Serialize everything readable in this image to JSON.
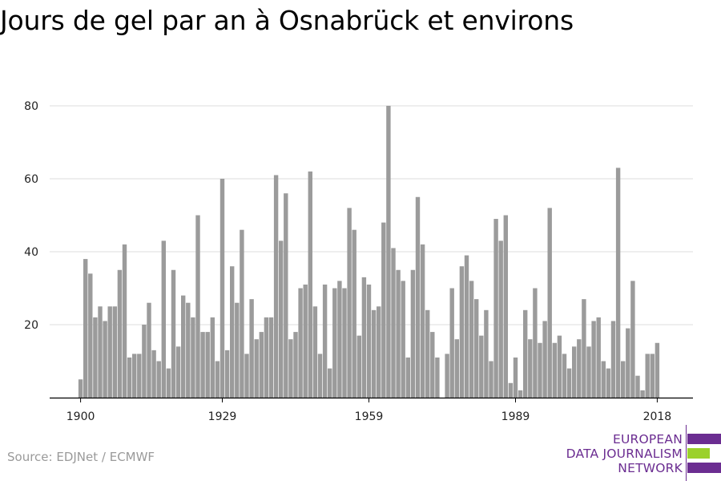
{
  "header": {
    "title": "Jours de gel par an à Osnabrück et environs"
  },
  "footer": {
    "source": "Source: EDJNet / ECMWF"
  },
  "logo": {
    "line1": "EUROPEAN",
    "line2": "DATA JOURNALISM",
    "line3": "NETWORK",
    "colors": {
      "purple": "#6b2d91",
      "green": "#9bd12b"
    }
  },
  "chart_data": {
    "type": "bar",
    "title": "Jours de gel par an à Osnabrück et environs",
    "xlabel": "",
    "ylabel": "",
    "x_start": 1900,
    "x_end": 2018,
    "x_ticks": [
      1900,
      1929,
      1959,
      1989,
      2018
    ],
    "y_ticks": [
      20,
      40,
      60,
      80
    ],
    "ylim": [
      0,
      85
    ],
    "grid": true,
    "bar_color": "#9b9b9b",
    "years": [
      1900,
      1901,
      1902,
      1903,
      1904,
      1905,
      1906,
      1907,
      1908,
      1909,
      1910,
      1911,
      1912,
      1913,
      1914,
      1915,
      1916,
      1917,
      1918,
      1919,
      1920,
      1921,
      1922,
      1923,
      1924,
      1925,
      1926,
      1927,
      1928,
      1929,
      1930,
      1931,
      1932,
      1933,
      1934,
      1935,
      1936,
      1937,
      1938,
      1939,
      1940,
      1941,
      1942,
      1943,
      1944,
      1945,
      1946,
      1947,
      1948,
      1949,
      1950,
      1951,
      1952,
      1953,
      1954,
      1955,
      1956,
      1957,
      1958,
      1959,
      1960,
      1961,
      1962,
      1963,
      1964,
      1965,
      1966,
      1967,
      1968,
      1969,
      1970,
      1971,
      1972,
      1973,
      1974,
      1975,
      1976,
      1977,
      1978,
      1979,
      1980,
      1981,
      1982,
      1983,
      1984,
      1985,
      1986,
      1987,
      1988,
      1989,
      1990,
      1991,
      1992,
      1993,
      1994,
      1995,
      1996,
      1997,
      1998,
      1999,
      2000,
      2001,
      2002,
      2003,
      2004,
      2005,
      2006,
      2007,
      2008,
      2009,
      2010,
      2011,
      2012,
      2013,
      2014,
      2015,
      2016,
      2017,
      2018
    ],
    "values": [
      5,
      38,
      34,
      22,
      25,
      21,
      25,
      25,
      35,
      42,
      11,
      12,
      12,
      20,
      26,
      13,
      10,
      43,
      8,
      35,
      14,
      28,
      26,
      22,
      50,
      18,
      18,
      22,
      10,
      60,
      13,
      36,
      26,
      46,
      12,
      27,
      16,
      18,
      22,
      22,
      61,
      43,
      56,
      16,
      18,
      30,
      31,
      62,
      25,
      12,
      31,
      8,
      30,
      32,
      30,
      52,
      46,
      17,
      33,
      31,
      24,
      25,
      48,
      80,
      41,
      35,
      32,
      11,
      35,
      55,
      42,
      24,
      18,
      11,
      0,
      12,
      30,
      16,
      36,
      39,
      32,
      27,
      17,
      24,
      10,
      49,
      43,
      50,
      4,
      11,
      2,
      24,
      16,
      30,
      15,
      21,
      52,
      15,
      17,
      12,
      8,
      14,
      16,
      27,
      14,
      21,
      22,
      10,
      8,
      21,
      63,
      10,
      19,
      32,
      6,
      2,
      12,
      12,
      15
    ]
  }
}
